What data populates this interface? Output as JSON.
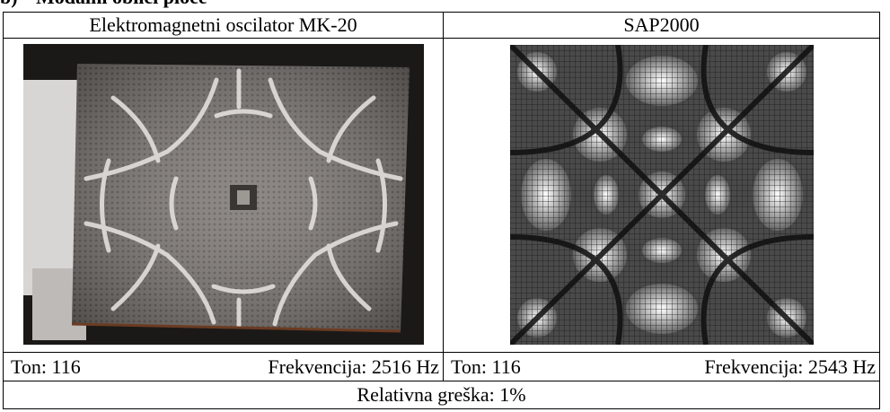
{
  "section": {
    "marker": "b)",
    "title": "Modalni oblici ploče"
  },
  "table": {
    "left_header": "Elektromagnetni oscilator MK-20",
    "right_header": "SAP2000",
    "left_ton": "Ton: 116",
    "left_freq": "Frekvencija: 2516 Hz",
    "right_ton": "Ton: 116",
    "right_freq": "Frekvencija: 2543 Hz",
    "footer": "Relativna greška: 1%"
  }
}
